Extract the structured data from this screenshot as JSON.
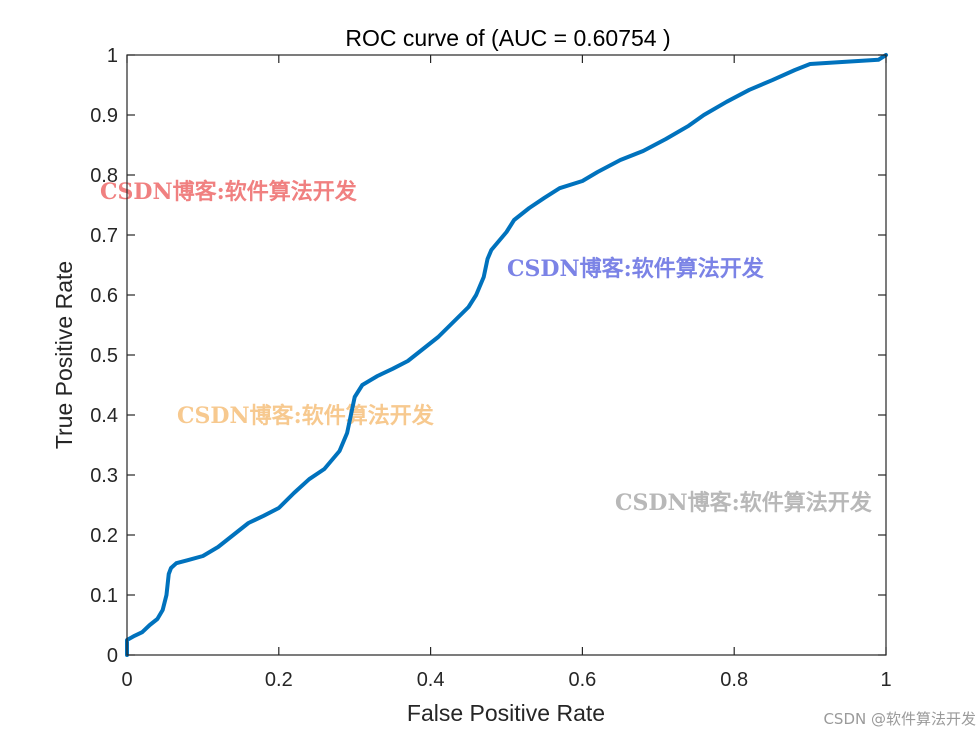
{
  "chart_data": {
    "type": "line",
    "title": "ROC curve of (AUC = 0.60754 )",
    "xlabel": "False Positive Rate",
    "ylabel": "True Positive Rate",
    "xlim": [
      0,
      1
    ],
    "ylim": [
      0,
      1
    ],
    "grid": false,
    "x_ticks": [
      {
        "value": 0,
        "label": "0"
      },
      {
        "value": 0.2,
        "label": "0.2"
      },
      {
        "value": 0.4,
        "label": "0.4"
      },
      {
        "value": 0.6,
        "label": "0.6"
      },
      {
        "value": 0.8,
        "label": "0.8"
      },
      {
        "value": 1,
        "label": "1"
      }
    ],
    "y_ticks": [
      {
        "value": 0,
        "label": "0"
      },
      {
        "value": 0.1,
        "label": "0.1"
      },
      {
        "value": 0.2,
        "label": "0.2"
      },
      {
        "value": 0.3,
        "label": "0.3"
      },
      {
        "value": 0.4,
        "label": "0.4"
      },
      {
        "value": 0.5,
        "label": "0.5"
      },
      {
        "value": 0.6,
        "label": "0.6"
      },
      {
        "value": 0.7,
        "label": "0.7"
      },
      {
        "value": 0.8,
        "label": "0.8"
      },
      {
        "value": 0.9,
        "label": "0.9"
      },
      {
        "value": 1,
        "label": "1"
      }
    ],
    "series": [
      {
        "color": "#0072BD",
        "points": [
          [
            0.0,
            0.0
          ],
          [
            0.0,
            0.025
          ],
          [
            0.01,
            0.032
          ],
          [
            0.02,
            0.038
          ],
          [
            0.03,
            0.05
          ],
          [
            0.04,
            0.06
          ],
          [
            0.047,
            0.075
          ],
          [
            0.052,
            0.1
          ],
          [
            0.055,
            0.135
          ],
          [
            0.058,
            0.145
          ],
          [
            0.065,
            0.153
          ],
          [
            0.08,
            0.158
          ],
          [
            0.1,
            0.165
          ],
          [
            0.12,
            0.18
          ],
          [
            0.14,
            0.2
          ],
          [
            0.16,
            0.22
          ],
          [
            0.18,
            0.232
          ],
          [
            0.2,
            0.245
          ],
          [
            0.22,
            0.27
          ],
          [
            0.24,
            0.293
          ],
          [
            0.26,
            0.31
          ],
          [
            0.28,
            0.34
          ],
          [
            0.29,
            0.37
          ],
          [
            0.295,
            0.4
          ],
          [
            0.3,
            0.43
          ],
          [
            0.31,
            0.45
          ],
          [
            0.33,
            0.465
          ],
          [
            0.35,
            0.477
          ],
          [
            0.37,
            0.49
          ],
          [
            0.39,
            0.51
          ],
          [
            0.41,
            0.53
          ],
          [
            0.43,
            0.555
          ],
          [
            0.45,
            0.58
          ],
          [
            0.46,
            0.6
          ],
          [
            0.47,
            0.63
          ],
          [
            0.475,
            0.66
          ],
          [
            0.48,
            0.675
          ],
          [
            0.49,
            0.69
          ],
          [
            0.5,
            0.705
          ],
          [
            0.51,
            0.725
          ],
          [
            0.53,
            0.745
          ],
          [
            0.55,
            0.762
          ],
          [
            0.57,
            0.778
          ],
          [
            0.6,
            0.79
          ],
          [
            0.62,
            0.805
          ],
          [
            0.65,
            0.825
          ],
          [
            0.68,
            0.84
          ],
          [
            0.71,
            0.86
          ],
          [
            0.74,
            0.882
          ],
          [
            0.76,
            0.9
          ],
          [
            0.79,
            0.922
          ],
          [
            0.82,
            0.942
          ],
          [
            0.85,
            0.958
          ],
          [
            0.88,
            0.975
          ],
          [
            0.9,
            0.985
          ],
          [
            0.95,
            0.989
          ],
          [
            0.99,
            0.992
          ],
          [
            1.0,
            1.0
          ]
        ]
      }
    ]
  },
  "watermarks": [
    {
      "text": "CSDN博客:软件算法开发",
      "color": "#f08080"
    },
    {
      "text": "CSDN博客:软件算法开发",
      "color": "#7b83e6"
    },
    {
      "text": "CSDN博客:软件算法开发",
      "color": "#f7c98f"
    },
    {
      "text": "CSDN博客:软件算法开发",
      "color": "#b8b8b8"
    }
  ],
  "footer": {
    "credit": "CSDN @软件算法开发"
  }
}
